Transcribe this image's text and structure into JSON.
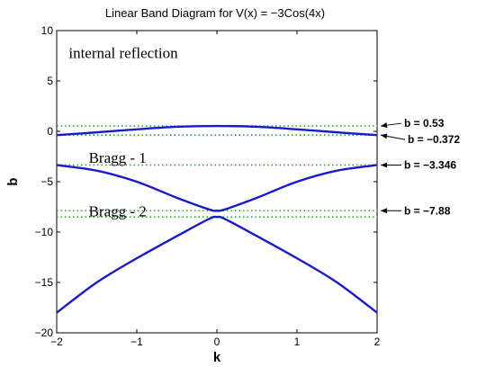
{
  "chart_data": {
    "type": "line",
    "title": "Linear Band Diagram for V(x) = −3Cos(4x)",
    "xlabel": "k",
    "ylabel": "b",
    "xlim": [
      -2,
      2
    ],
    "ylim": [
      -20,
      10
    ],
    "x_ticks": [
      "−2",
      "−1",
      "0",
      "1",
      "2"
    ],
    "y_ticks": [
      "−20",
      "−15",
      "−10",
      "−5",
      "0",
      "5",
      "10"
    ],
    "grid": false,
    "series_color": "#1a1acc",
    "level_line_color": "#22aa22",
    "series": [
      {
        "x": [
          -2,
          -1.5,
          -1,
          -0.5,
          0,
          0.5,
          1,
          1.5,
          2
        ],
        "y": [
          -0.372,
          -0.1,
          0.2,
          0.45,
          0.53,
          0.45,
          0.2,
          -0.1,
          -0.372
        ]
      },
      {
        "x": [
          -2,
          -1.5,
          -1,
          -0.5,
          -0.1,
          0,
          0.1,
          0.5,
          1,
          1.5,
          2
        ],
        "y": [
          -3.346,
          -3.9,
          -5.0,
          -6.6,
          -7.75,
          -7.88,
          -7.75,
          -6.6,
          -5.0,
          -3.9,
          -3.346
        ]
      },
      {
        "x": [
          -2,
          -1.5,
          -1,
          -0.5,
          -0.1,
          0,
          0.1,
          0.5,
          1,
          1.5,
          2
        ],
        "y": [
          -18.0,
          -15.0,
          -12.6,
          -10.4,
          -8.7,
          -8.5,
          -8.7,
          -10.4,
          -12.6,
          -15.0,
          -18.0
        ]
      }
    ],
    "level_lines": [
      0.53,
      -0.372,
      -3.346,
      -7.88,
      -8.5
    ],
    "band_labels": [
      {
        "text": "b = 0.53",
        "y": 0.53
      },
      {
        "text": "b = −0.372",
        "y": -0.372
      },
      {
        "text": "b = −3.346",
        "y": -3.346
      },
      {
        "text": "b = −7.88",
        "y": -7.88
      }
    ],
    "annotations": [
      {
        "text": "internal reflection",
        "x": -1.85,
        "y": 7.8
      },
      {
        "text": "Bragg - 1",
        "x": -1.6,
        "y": -2.6
      },
      {
        "text": "Bragg - 2",
        "x": -1.6,
        "y": -7.9
      }
    ]
  }
}
